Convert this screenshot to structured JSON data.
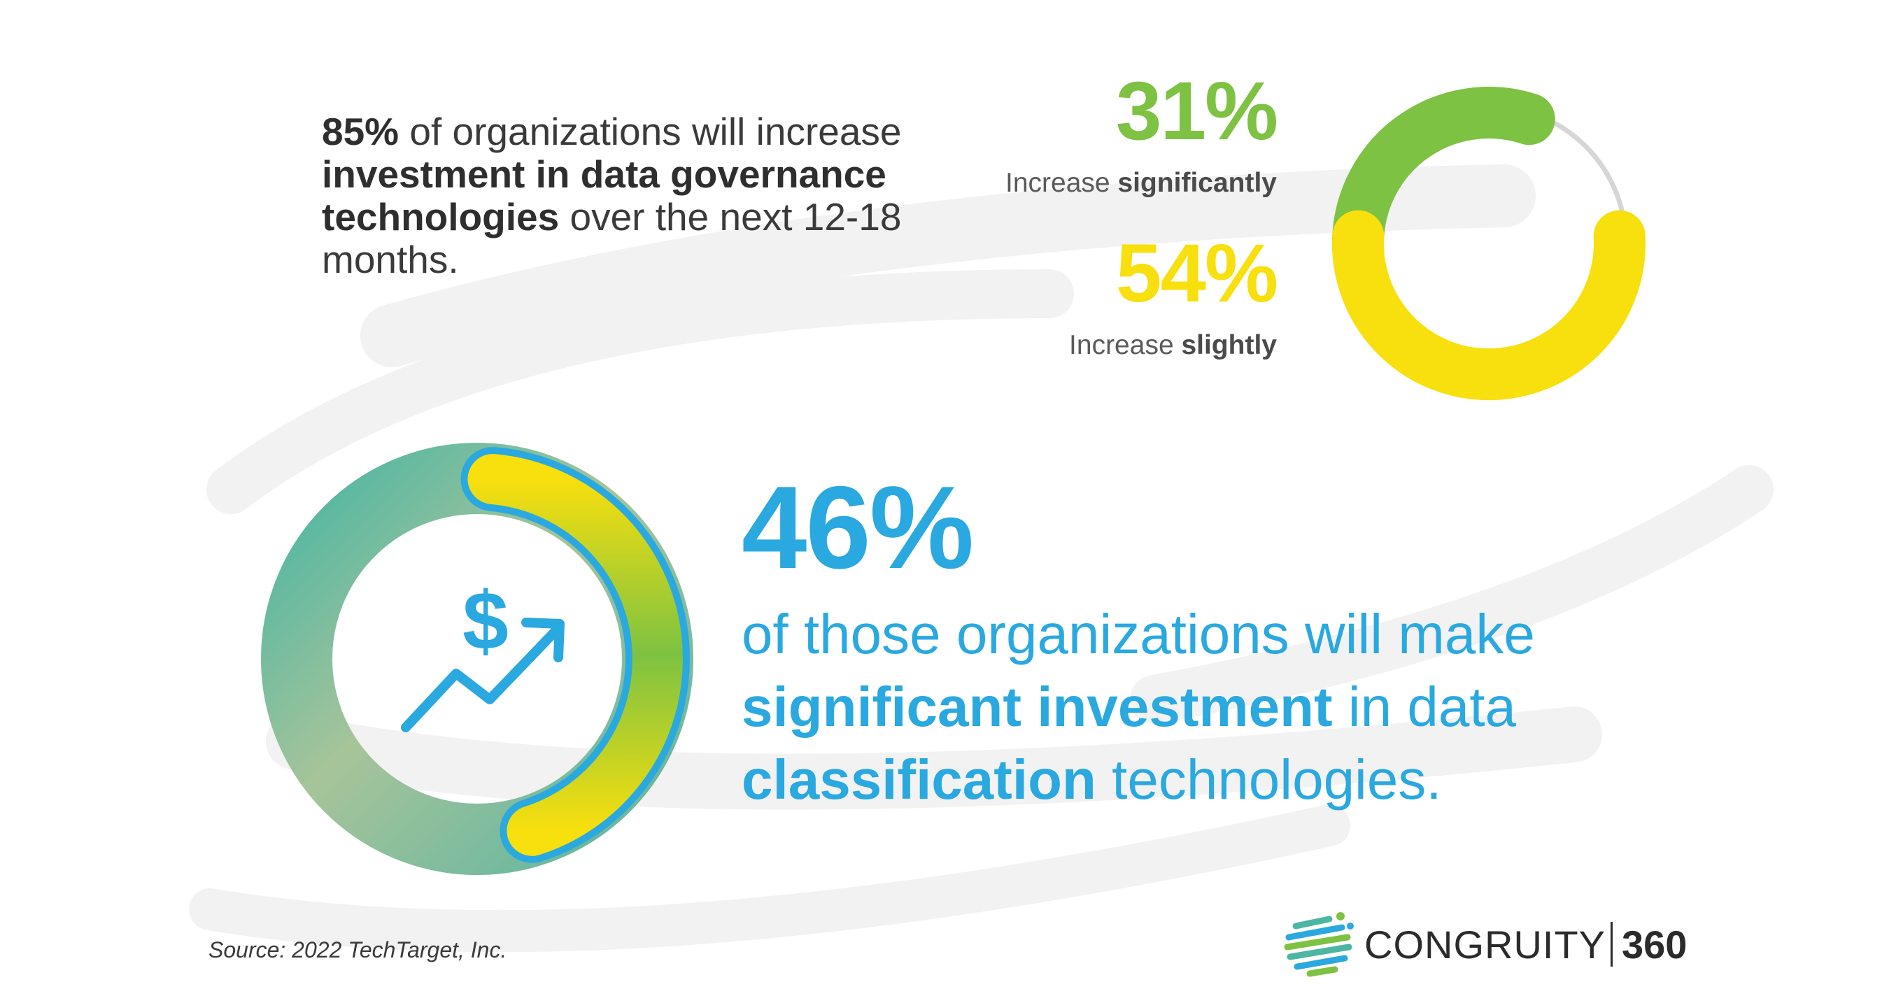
{
  "intro": {
    "p1_bold": "85%",
    "p1_rest": " of organizations will increase",
    "p2_bold": "investment in data governance",
    "p3_bold": "technologies",
    "p3_rest": " over the  next 12-18",
    "p4": "months."
  },
  "colors": {
    "green": "#7dc242",
    "yellow": "#f8df0e",
    "track": "#d6d6d6",
    "blue": "#2aa8e0",
    "teal": "#5fb6a0"
  },
  "chart_data": [
    {
      "type": "pie",
      "title": "",
      "series": [
        {
          "name": "Increase significantly",
          "value": 31,
          "label": "31%",
          "caption_plain": "Increase ",
          "caption_bold": "significantly",
          "color": "#7dc242"
        },
        {
          "name": "Increase slightly",
          "value": 54,
          "label": "54%",
          "caption_plain": "Increase ",
          "caption_bold": "slightly",
          "color": "#f8df0e"
        }
      ],
      "remainder": 15
    },
    {
      "type": "pie",
      "title": "",
      "value": 46,
      "label": "46%",
      "desc_line1": "of those organizations will make",
      "desc_bold1": "significant investment",
      "desc_rest2": " in data",
      "desc_bold3": "classification",
      "desc_rest3": " technologies.",
      "icon": "dollar-trend-up-icon"
    }
  ],
  "source": "Source: 2022 TechTarget, Inc.",
  "brand": {
    "name": "CONGRUITY",
    "number": "360",
    "logo": "globe-logo-icon"
  }
}
